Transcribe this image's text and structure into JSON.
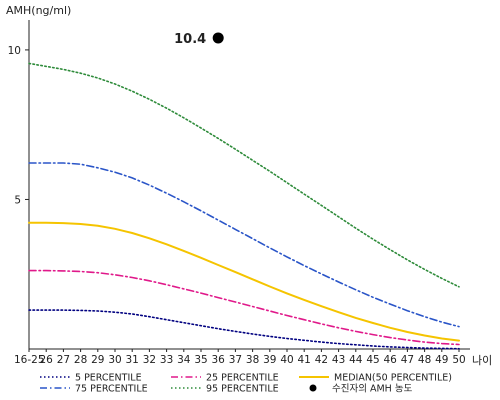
{
  "chart_data": {
    "type": "line",
    "title": "",
    "ylabel": "AMH(ng/ml)",
    "xlabel": "나이",
    "ylim": [
      0,
      11
    ],
    "yticks": [
      "5",
      "10"
    ],
    "categories": [
      "16-25",
      "26",
      "27",
      "28",
      "29",
      "30",
      "31",
      "32",
      "33",
      "34",
      "35",
      "36",
      "37",
      "38",
      "39",
      "40",
      "41",
      "42",
      "43",
      "44",
      "45",
      "46",
      "47",
      "48",
      "49",
      "50"
    ],
    "series": [
      {
        "name": "5 PERCENTILE",
        "color": "#000080",
        "style": "dotted",
        "values": [
          1.3,
          1.3,
          1.3,
          1.29,
          1.27,
          1.23,
          1.17,
          1.08,
          0.98,
          0.88,
          0.78,
          0.68,
          0.59,
          0.5,
          0.42,
          0.35,
          0.29,
          0.23,
          0.18,
          0.14,
          0.1,
          0.07,
          0.05,
          0.03,
          0.02,
          0.01
        ]
      },
      {
        "name": "25 PERCENTILE",
        "color": "#e0198a",
        "style": "dashdot",
        "values": [
          2.62,
          2.62,
          2.61,
          2.59,
          2.55,
          2.48,
          2.39,
          2.28,
          2.15,
          2.01,
          1.87,
          1.72,
          1.57,
          1.42,
          1.27,
          1.12,
          0.98,
          0.84,
          0.71,
          0.59,
          0.48,
          0.38,
          0.3,
          0.23,
          0.18,
          0.15
        ]
      },
      {
        "name": "MEDIAN(50 PERCENTILE)",
        "color": "#f5c400",
        "style": "solid",
        "values": [
          4.22,
          4.22,
          4.21,
          4.18,
          4.12,
          4.02,
          3.88,
          3.7,
          3.5,
          3.28,
          3.05,
          2.81,
          2.57,
          2.33,
          2.09,
          1.86,
          1.64,
          1.43,
          1.23,
          1.04,
          0.87,
          0.71,
          0.57,
          0.45,
          0.35,
          0.28
        ]
      },
      {
        "name": "75 PERCENTILE",
        "color": "#2a55c8",
        "style": "dashdot",
        "values": [
          6.22,
          6.22,
          6.22,
          6.18,
          6.06,
          5.91,
          5.72,
          5.48,
          5.21,
          4.92,
          4.62,
          4.31,
          4.0,
          3.69,
          3.38,
          3.08,
          2.79,
          2.51,
          2.24,
          1.98,
          1.73,
          1.5,
          1.28,
          1.08,
          0.9,
          0.75
        ]
      },
      {
        "name": "95 PERCENTILE",
        "color": "#2e8b3a",
        "style": "dotted",
        "values": [
          9.55,
          9.45,
          9.35,
          9.22,
          9.06,
          8.86,
          8.62,
          8.35,
          8.05,
          7.73,
          7.39,
          7.04,
          6.68,
          6.31,
          5.94,
          5.56,
          5.18,
          4.8,
          4.42,
          4.04,
          3.67,
          3.32,
          2.98,
          2.66,
          2.36,
          2.08
        ]
      }
    ],
    "points": [
      {
        "name": "수진자의 AMH 농도",
        "x": "36",
        "y": 10.4,
        "label": "10.4",
        "color": "#000000"
      }
    ],
    "grid": false,
    "legend_position": "bottom"
  }
}
